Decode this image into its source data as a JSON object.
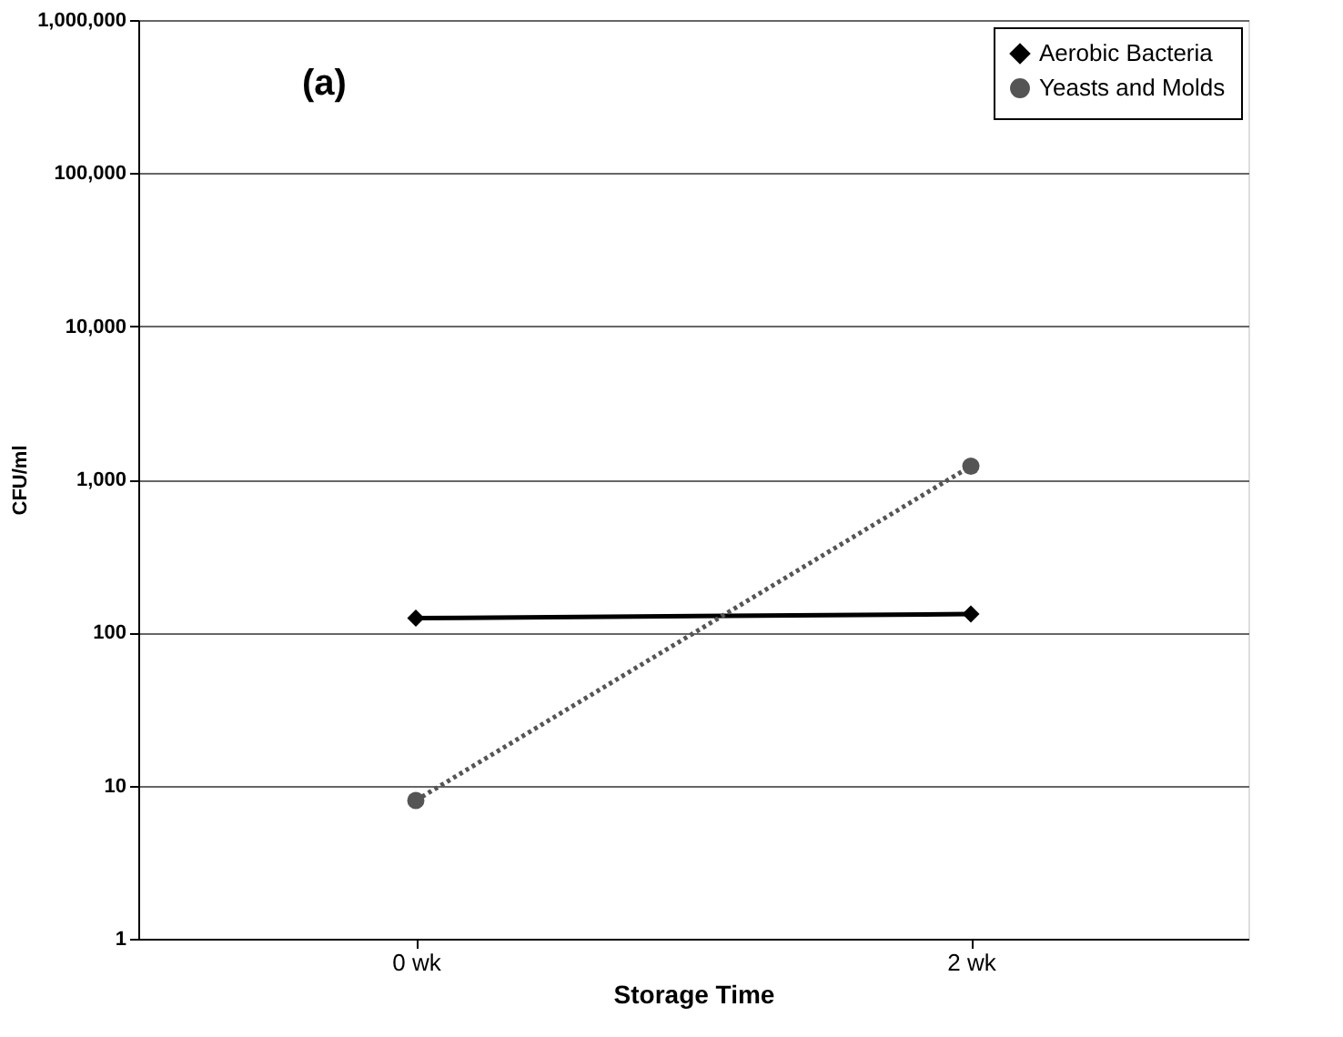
{
  "chart_data": {
    "type": "line",
    "xlabel": "Storage Time",
    "ylabel": "CFU/ml",
    "annotations": [
      "(a)"
    ],
    "categories": [
      "0 wk",
      "2 wk"
    ],
    "series": [
      {
        "name": "Aerobic Bacteria",
        "color": "#000000",
        "values": [
          124,
          132
        ],
        "marker": "diamond",
        "line_style": "solid"
      },
      {
        "name": "Yeasts and Molds",
        "color": "#555555",
        "values": [
          8.0,
          1220
        ],
        "marker": "circle",
        "line_style": "dotted"
      }
    ],
    "log": true,
    "ylim": [
      1,
      1000000
    ],
    "yticks": [
      1,
      10,
      100,
      {
        "value": 1000,
        "label": "1,000"
      },
      {
        "value": 10000,
        "label": "10,000"
      },
      {
        "value": 100000,
        "label": "100,000"
      },
      {
        "value": 1000000,
        "label": "1,000,000"
      }
    ],
    "grid": "y",
    "legend": "top right"
  }
}
